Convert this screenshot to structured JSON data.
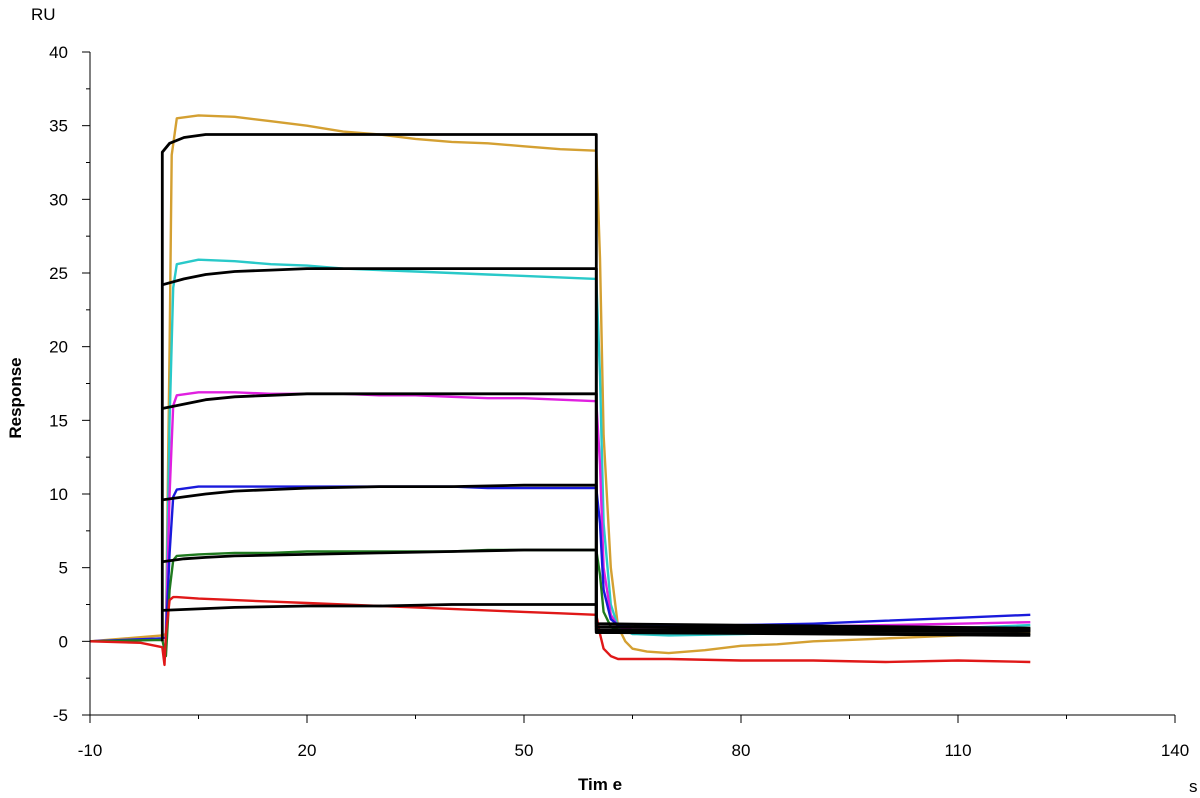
{
  "chart_data": {
    "type": "line",
    "title": "",
    "xlabel": "Tim e",
    "ylabel": "Response",
    "x_unit": "s",
    "y_unit": "RU",
    "xlim": [
      -10,
      140
    ],
    "ylim": [
      -5,
      40
    ],
    "x_ticks": [
      "-10",
      "20",
      "50",
      "80",
      "110",
      "140"
    ],
    "y_ticks": [
      "-5",
      "0",
      "5",
      "10",
      "15",
      "20",
      "25",
      "30",
      "35",
      "40"
    ],
    "grid": false,
    "legend": "none",
    "series": [
      {
        "color": "#d4a032",
        "x": [
          -10,
          0,
          0.5,
          1,
          1.3,
          2,
          5,
          10,
          15,
          20,
          25,
          30,
          35,
          40,
          45,
          50,
          55,
          60,
          60.5,
          61,
          62,
          63,
          64,
          65,
          67,
          70,
          75,
          80,
          85,
          90,
          95,
          100,
          105,
          110,
          115,
          120
        ],
        "y": [
          0,
          0.4,
          0.5,
          20,
          33,
          35.5,
          35.7,
          35.6,
          35.3,
          35,
          34.6,
          34.4,
          34.1,
          33.9,
          33.8,
          33.6,
          33.4,
          33.3,
          26,
          14,
          5,
          1,
          0,
          -0.5,
          -0.7,
          -0.8,
          -0.6,
          -0.3,
          -0.2,
          0,
          0.1,
          0.2,
          0.3,
          0.4,
          0.5,
          0.6
        ]
      },
      {
        "color": "#29c9c9",
        "x": [
          -10,
          0,
          0.5,
          1,
          1.5,
          2,
          5,
          10,
          15,
          20,
          25,
          30,
          35,
          40,
          45,
          50,
          55,
          60,
          60.5,
          61,
          62,
          63,
          65,
          70,
          80,
          90,
          100,
          110,
          120
        ],
        "y": [
          0,
          0.2,
          0.3,
          15,
          24,
          25.6,
          25.9,
          25.8,
          25.6,
          25.5,
          25.3,
          25.2,
          25.1,
          25,
          24.9,
          24.8,
          24.7,
          24.6,
          18,
          8,
          2.5,
          1,
          0.5,
          0.4,
          0.5,
          0.6,
          0.8,
          0.9,
          1.1
        ]
      },
      {
        "color": "#e020e0",
        "x": [
          -10,
          0,
          0.5,
          1,
          1.5,
          2,
          5,
          10,
          15,
          20,
          25,
          30,
          35,
          40,
          45,
          50,
          55,
          60,
          60.5,
          61,
          62,
          63,
          65,
          70,
          80,
          90,
          100,
          110,
          120
        ],
        "y": [
          0,
          0.2,
          0.3,
          10,
          16,
          16.7,
          16.9,
          16.9,
          16.8,
          16.8,
          16.8,
          16.7,
          16.7,
          16.6,
          16.5,
          16.5,
          16.4,
          16.3,
          12,
          5,
          1.8,
          1,
          0.8,
          0.8,
          0.9,
          1,
          1.1,
          1.2,
          1.3
        ]
      },
      {
        "color": "#1a1adc",
        "x": [
          -10,
          0,
          0.5,
          1,
          1.5,
          2,
          5,
          10,
          15,
          20,
          25,
          30,
          35,
          40,
          45,
          50,
          55,
          60,
          60.5,
          61,
          62,
          63,
          65,
          70,
          80,
          90,
          100,
          110,
          120
        ],
        "y": [
          0,
          0.2,
          0.3,
          6,
          9.8,
          10.3,
          10.5,
          10.5,
          10.5,
          10.5,
          10.5,
          10.5,
          10.5,
          10.5,
          10.4,
          10.4,
          10.4,
          10.4,
          8,
          3.5,
          1.5,
          1.1,
          1,
          1,
          1.1,
          1.2,
          1.4,
          1.6,
          1.8
        ]
      },
      {
        "color": "#1f7a1f",
        "x": [
          -10,
          0,
          0.5,
          1,
          1.5,
          2,
          5,
          10,
          15,
          20,
          25,
          30,
          35,
          40,
          45,
          50,
          55,
          60,
          60.5,
          61,
          62,
          63,
          65,
          70,
          80,
          90,
          100,
          110,
          120
        ],
        "y": [
          0,
          0.1,
          -1,
          3.5,
          5.5,
          5.8,
          5.9,
          6,
          6,
          6.1,
          6.1,
          6.1,
          6.1,
          6.1,
          6.2,
          6.2,
          6.2,
          6.2,
          4.5,
          2,
          1,
          0.8,
          0.7,
          0.7,
          0.7,
          0.8,
          0.8,
          0.9,
          0.9
        ]
      },
      {
        "color": "#e01818",
        "x": [
          -10,
          -3,
          0,
          0.3,
          0.5,
          1,
          1.5,
          2,
          5,
          10,
          15,
          20,
          25,
          30,
          35,
          40,
          45,
          50,
          55,
          60,
          60.5,
          61,
          62,
          63,
          65,
          70,
          80,
          90,
          100,
          110,
          120
        ],
        "y": [
          0,
          -0.1,
          -0.4,
          -1.6,
          0.5,
          2.8,
          3,
          3,
          2.9,
          2.8,
          2.7,
          2.6,
          2.5,
          2.4,
          2.3,
          2.2,
          2.1,
          2,
          1.9,
          1.8,
          0.5,
          -0.5,
          -1,
          -1.2,
          -1.2,
          -1.2,
          -1.3,
          -1.3,
          -1.4,
          -1.3,
          -1.4
        ]
      },
      {
        "color": "#000000",
        "x": [
          0,
          0,
          1,
          3,
          6,
          10,
          20,
          30,
          40,
          50,
          60,
          60,
          120
        ],
        "y": [
          0,
          33.2,
          33.8,
          34.2,
          34.4,
          34.4,
          34.4,
          34.4,
          34.4,
          34.4,
          34.4,
          0.7,
          0.7
        ]
      },
      {
        "color": "#000000",
        "x": [
          0,
          3,
          6,
          10,
          15,
          20,
          30,
          40,
          50,
          60,
          60,
          120
        ],
        "y": [
          24.2,
          24.6,
          24.9,
          25.1,
          25.2,
          25.3,
          25.3,
          25.3,
          25.3,
          25.3,
          1.2,
          0.9
        ]
      },
      {
        "color": "#000000",
        "x": [
          0,
          3,
          6,
          10,
          15,
          20,
          30,
          40,
          50,
          60,
          60,
          120
        ],
        "y": [
          15.8,
          16.1,
          16.4,
          16.6,
          16.7,
          16.8,
          16.8,
          16.8,
          16.8,
          16.8,
          1,
          0.8
        ]
      },
      {
        "color": "#000000",
        "x": [
          0,
          3,
          6,
          10,
          20,
          30,
          40,
          50,
          60,
          60,
          120
        ],
        "y": [
          9.6,
          9.8,
          10,
          10.2,
          10.4,
          10.5,
          10.5,
          10.6,
          10.6,
          0.8,
          0.7
        ]
      },
      {
        "color": "#000000",
        "x": [
          0,
          3,
          6,
          10,
          20,
          30,
          40,
          50,
          60,
          60,
          120
        ],
        "y": [
          5.4,
          5.6,
          5.7,
          5.8,
          5.9,
          6,
          6.1,
          6.2,
          6.2,
          0.6,
          0.5
        ]
      },
      {
        "color": "#000000",
        "x": [
          0,
          5,
          10,
          20,
          30,
          40,
          50,
          60,
          60,
          120
        ],
        "y": [
          2.1,
          2.2,
          2.3,
          2.4,
          2.4,
          2.5,
          2.5,
          2.5,
          0.6,
          0.4
        ]
      }
    ]
  }
}
